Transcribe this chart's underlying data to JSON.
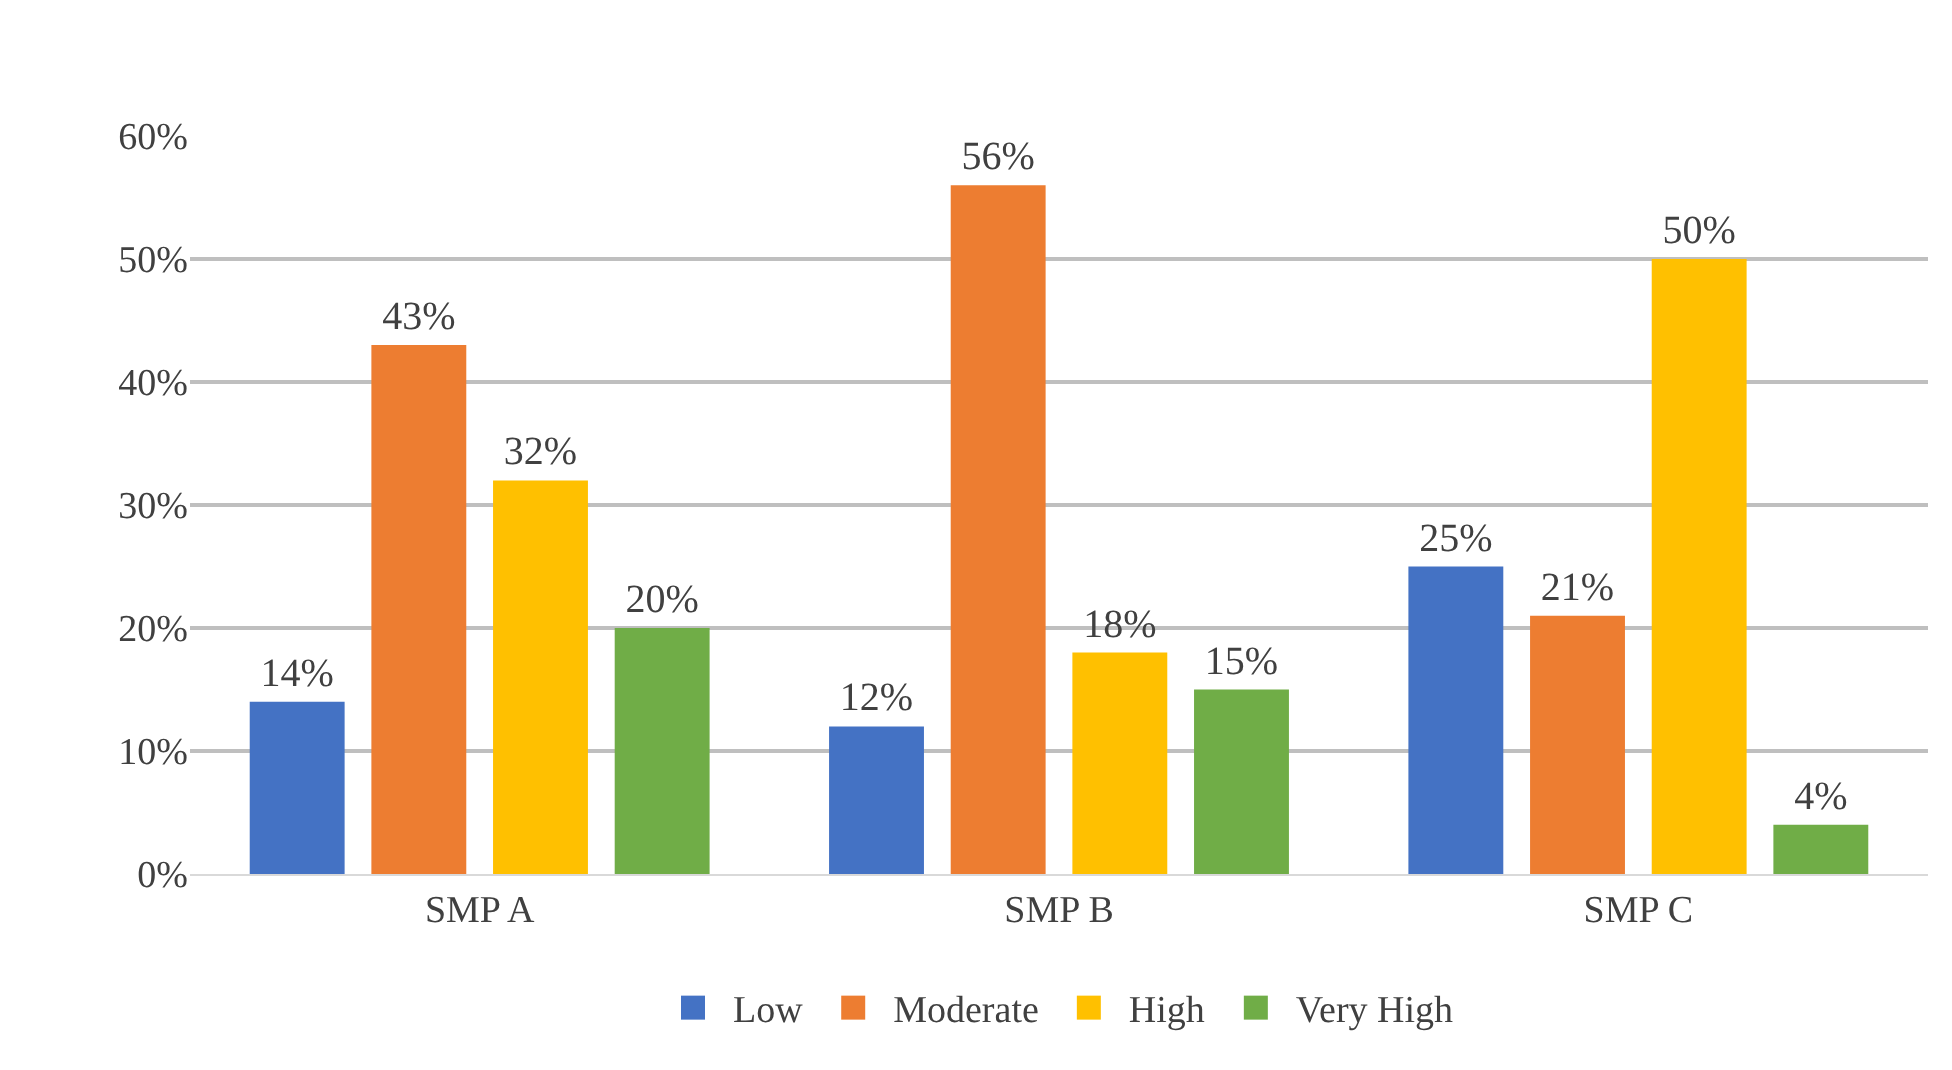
{
  "chart_data": {
    "type": "bar",
    "categories": [
      "SMP A",
      "SMP B",
      "SMP C"
    ],
    "series": [
      {
        "name": "Low",
        "color": "#4472c4",
        "values": [
          14,
          12,
          25
        ],
        "value_labels": [
          "14%",
          "12%",
          "25%"
        ]
      },
      {
        "name": "Moderate",
        "color": "#ed7d31",
        "values": [
          43,
          56,
          21
        ],
        "value_labels": [
          "43%",
          "56%",
          "21%"
        ]
      },
      {
        "name": "High",
        "color": "#ffc000",
        "values": [
          32,
          18,
          50
        ],
        "value_labels": [
          "32%",
          "18%",
          "50%"
        ]
      },
      {
        "name": "Very High",
        "color": "#70ad47",
        "values": [
          20,
          15,
          4
        ],
        "value_labels": [
          "20%",
          "15%",
          "4%"
        ]
      }
    ],
    "ylim": [
      0,
      60
    ],
    "yticks": [
      {
        "value": 0,
        "label": "0%"
      },
      {
        "value": 10,
        "label": "10%"
      },
      {
        "value": 20,
        "label": "20%"
      },
      {
        "value": 30,
        "label": "30%"
      },
      {
        "value": 40,
        "label": "40%"
      },
      {
        "value": 50,
        "label": "50%"
      },
      {
        "value": 60,
        "label": "60%"
      }
    ],
    "grid": "y",
    "legend": "bottom"
  }
}
